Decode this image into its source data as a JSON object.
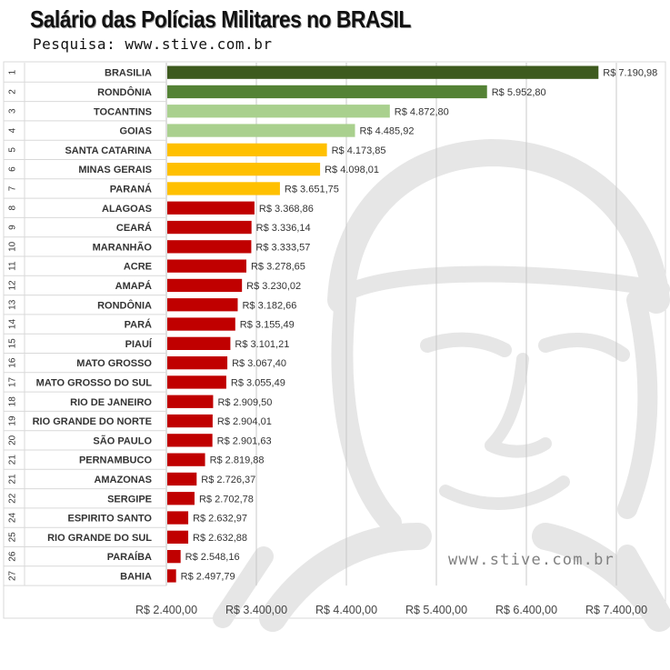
{
  "header": {
    "title": "Salário das Polícias Militares no BRASIL",
    "subtitle": "Pesquisa: www.stive.com.br"
  },
  "watermark": {
    "text": "www.stive.com.br"
  },
  "colors": {
    "dark_green": "#3d5a1e",
    "green": "#548235",
    "light_green": "#a9d08e",
    "yellow": "#ffc000",
    "red": "#c00000"
  },
  "chart_data": {
    "type": "bar",
    "orientation": "horizontal",
    "title": "Salário das Polícias Militares no BRASIL",
    "subtitle": "Pesquisa: www.stive.com.br",
    "xlim": [
      2400,
      7400
    ],
    "x_ticks": [
      2400,
      3400,
      4400,
      5400,
      6400,
      7400
    ],
    "x_tick_labels": [
      "R$ 2.400,00",
      "R$ 3.400,00",
      "R$ 4.400,00",
      "R$ 5.400,00",
      "R$ 6.400,00",
      "R$ 7.400,00"
    ],
    "grid": "vertical",
    "ranks": [
      "1",
      "2",
      "3",
      "4",
      "5",
      "6",
      "7",
      "8",
      "9",
      "10",
      "11",
      "12",
      "13",
      "14",
      "15",
      "16",
      "17",
      "18",
      "19",
      "20",
      "21",
      "21",
      "22",
      "24",
      "25",
      "26",
      "27"
    ],
    "categories": [
      "BRASILIA",
      "RONDÔNIA",
      "TOCANTINS",
      "GOIAS",
      "SANTA CATARINA",
      "MINAS GERAIS",
      "PARANÁ",
      "ALAGOAS",
      "CEARÁ",
      "MARANHÃO",
      "ACRE",
      "AMAPÁ",
      "RONDÔNIA",
      "PARÁ",
      "PIAUÍ",
      "MATO GROSSO",
      "MATO GROSSO DO SUL",
      "RIO DE JANEIRO",
      "RIO GRANDE DO NORTE",
      "SÃO PAULO",
      "PERNAMBUCO",
      "AMAZONAS",
      "SERGIPE",
      "ESPIRITO SANTO",
      "RIO GRANDE DO SUL",
      "PARAÍBA",
      "BAHIA"
    ],
    "values": [
      7190.98,
      5952.8,
      4872.8,
      4485.92,
      4173.85,
      4098.01,
      3651.75,
      3368.86,
      3336.14,
      3333.57,
      3278.65,
      3230.02,
      3182.66,
      3155.49,
      3101.21,
      3067.4,
      3055.49,
      2909.5,
      2904.01,
      2901.63,
      2819.88,
      2726.37,
      2702.78,
      2632.97,
      2632.88,
      2548.16,
      2497.79
    ],
    "value_labels": [
      "R$ 7.190,98",
      "R$ 5.952,80",
      "R$ 4.872,80",
      "R$ 4.485,92",
      "R$ 4.173,85",
      "R$ 4.098,01",
      "R$ 3.651,75",
      "R$ 3.368,86",
      "R$ 3.336,14",
      "R$ 3.333,57",
      "R$ 3.278,65",
      "R$ 3.230,02",
      "R$ 3.182,66",
      "R$ 3.155,49",
      "R$ 3.101,21",
      "R$ 3.067,40",
      "R$ 3.055,49",
      "R$ 2.909,50",
      "R$ 2.904,01",
      "R$ 2.901,63",
      "R$ 2.819,88",
      "R$ 2.726,37",
      "R$ 2.702,78",
      "R$ 2.632,97",
      "R$ 2.632,88",
      "R$ 2.548,16",
      "R$ 2.497,79"
    ],
    "bar_colors": [
      "#3d5a1e",
      "#548235",
      "#a9d08e",
      "#a9d08e",
      "#ffc000",
      "#ffc000",
      "#ffc000",
      "#c00000",
      "#c00000",
      "#c00000",
      "#c00000",
      "#c00000",
      "#c00000",
      "#c00000",
      "#c00000",
      "#c00000",
      "#c00000",
      "#c00000",
      "#c00000",
      "#c00000",
      "#c00000",
      "#c00000",
      "#c00000",
      "#c00000",
      "#c00000",
      "#c00000",
      "#c00000"
    ]
  }
}
